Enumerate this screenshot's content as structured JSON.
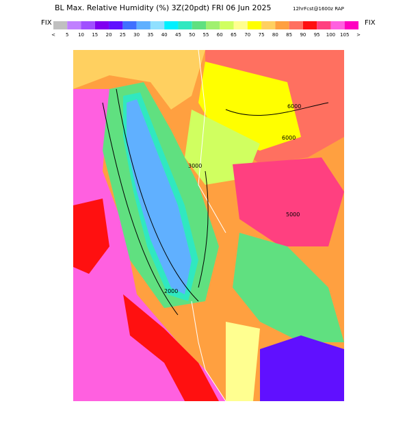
{
  "header": {
    "title": "BL Max. Relative Humidity (%) 3Z(20pdt) FRI 06 Jun 2025",
    "forecast": "12hrFcst@1600z RAP"
  },
  "scale": {
    "left_label": "FIX",
    "right_label": "FIX",
    "colors": [
      "#c0c0c0",
      "#c080ff",
      "#a050ff",
      "#8000f0",
      "#6010ff",
      "#4070ff",
      "#60b0ff",
      "#90e0ff",
      "#00f0ff",
      "#30e8c0",
      "#60e080",
      "#a0f070",
      "#d0ff60",
      "#ffff90",
      "#ffff00",
      "#ffd060",
      "#ffa040",
      "#ff7060",
      "#ff1010",
      "#ff4080",
      "#ff60e0",
      "#ff00c0"
    ],
    "labels": [
      "<",
      5,
      10,
      15,
      20,
      25,
      30,
      35,
      40,
      45,
      50,
      55,
      60,
      65,
      70,
      75,
      80,
      85,
      90,
      95,
      100,
      105,
      ">"
    ]
  },
  "contour_labels": [
    "6000",
    "6000",
    "5000",
    "3000",
    "2000"
  ]
}
